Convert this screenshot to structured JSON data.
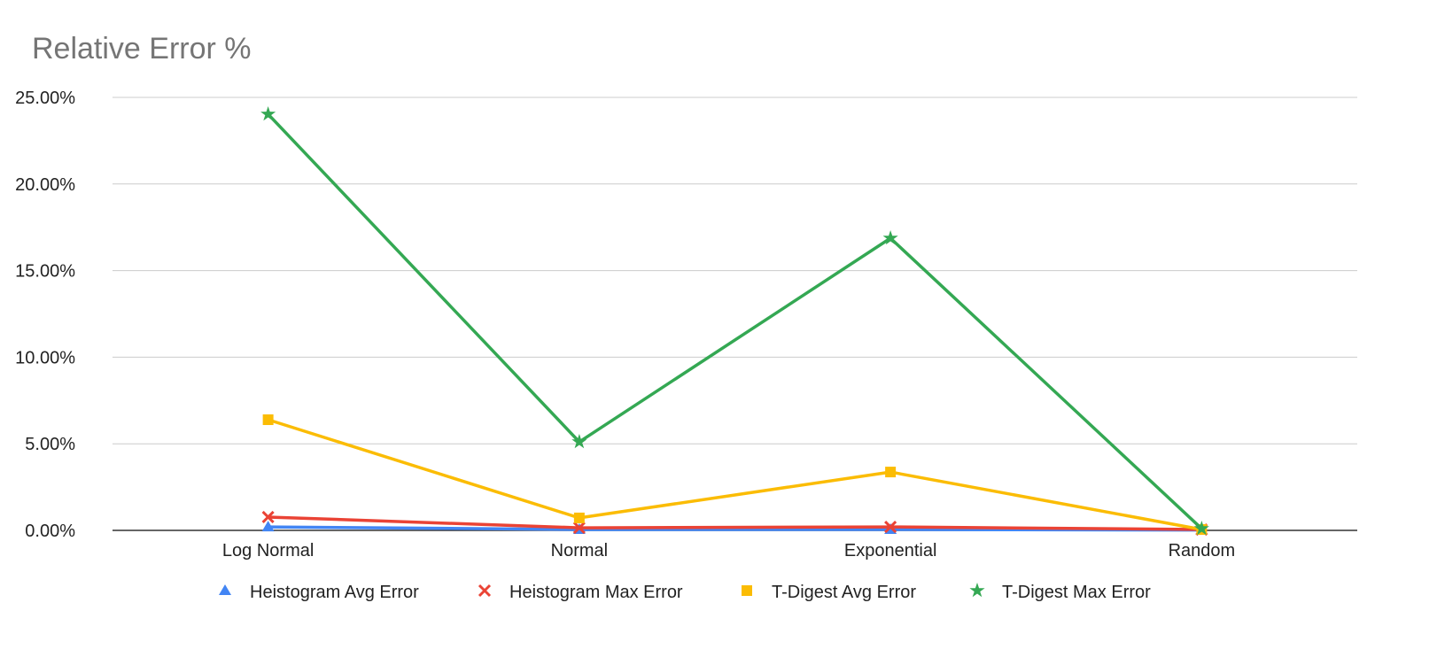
{
  "chart_data": {
    "type": "line",
    "title": "Relative Error %",
    "xlabel": "",
    "ylabel": "",
    "categories": [
      "Log Normal",
      "Normal",
      "Exponential",
      "Random"
    ],
    "ylim": [
      0,
      25
    ],
    "yticks": [
      0,
      5,
      10,
      15,
      20,
      25
    ],
    "ytick_labels": [
      "0.00%",
      "5.00%",
      "10.00%",
      "15.00%",
      "20.00%",
      "25.00%"
    ],
    "grid": true,
    "legend_position": "bottom",
    "series": [
      {
        "name": "Heistogram Avg Error",
        "color": "#4285f4",
        "marker": "triangle",
        "values": [
          0.2,
          0.05,
          0.05,
          0.02
        ]
      },
      {
        "name": "Heistogram Max Error",
        "color": "#ea4335",
        "marker": "x",
        "values": [
          0.77,
          0.15,
          0.2,
          0.05
        ]
      },
      {
        "name": "T-Digest Avg Error",
        "color": "#fbbc04",
        "marker": "square",
        "values": [
          6.39,
          0.72,
          3.37,
          0.05
        ]
      },
      {
        "name": "T-Digest Max Error",
        "color": "#34a853",
        "marker": "star",
        "values": [
          24.03,
          5.11,
          16.87,
          0.1
        ]
      }
    ]
  }
}
